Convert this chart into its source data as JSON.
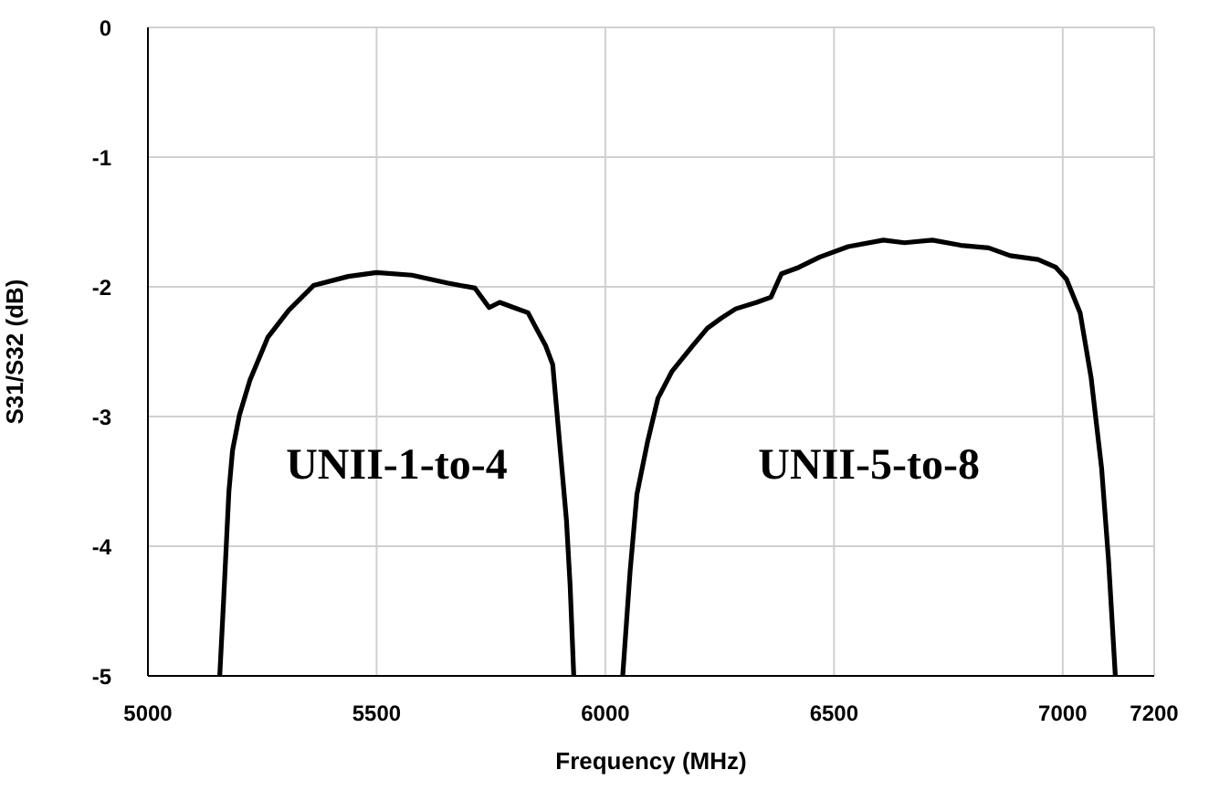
{
  "chart_data": {
    "type": "line",
    "xlabel": "Frequency (MHz)",
    "ylabel": "S31/S32 (dB)",
    "xlim": [
      5000,
      7200
    ],
    "xticks": [
      5000,
      5500,
      6000,
      6500,
      7000,
      7200
    ],
    "ylim": [
      -5,
      0
    ],
    "yticks": [
      0,
      -1,
      -2,
      -3,
      -4,
      -5
    ],
    "grid": true,
    "series": [
      {
        "color": "#000000",
        "x": [
          5157,
          5165,
          5177,
          5185,
          5200,
          5223,
          5262,
          5308,
          5362,
          5438,
          5500,
          5577,
          5654,
          5715,
          5746,
          5769,
          5800,
          5831,
          5846,
          5869,
          5885,
          5900,
          5915,
          5923,
          5931
        ],
        "values": [
          -5,
          -4.45,
          -3.58,
          -3.26,
          -2.99,
          -2.72,
          -2.39,
          -2.18,
          -1.99,
          -1.92,
          -1.89,
          -1.91,
          -1.97,
          -2.01,
          -2.16,
          -2.12,
          -2.16,
          -2.2,
          -2.3,
          -2.45,
          -2.6,
          -3.2,
          -3.8,
          -4.3,
          -5
        ]
      },
      {
        "color": "#000000",
        "x": [
          6038,
          6054,
          6069,
          6092,
          6115,
          6146,
          6192,
          6223,
          6254,
          6285,
          6331,
          6362,
          6385,
          6423,
          6469,
          6531,
          6608,
          6654,
          6715,
          6777,
          6838,
          6885,
          6946,
          6985,
          7008,
          7038,
          7062,
          7085,
          7100,
          7115
        ],
        "values": [
          -5,
          -4.2,
          -3.6,
          -3.2,
          -2.86,
          -2.65,
          -2.45,
          -2.32,
          -2.24,
          -2.17,
          -2.12,
          -2.08,
          -1.9,
          -1.85,
          -1.77,
          -1.69,
          -1.64,
          -1.66,
          -1.64,
          -1.68,
          -1.7,
          -1.76,
          -1.79,
          -1.85,
          -1.94,
          -2.2,
          -2.7,
          -3.4,
          -4.1,
          -5
        ]
      }
    ],
    "annotations": [
      "UNII-1-to-4",
      "UNII-5-to-8"
    ]
  }
}
